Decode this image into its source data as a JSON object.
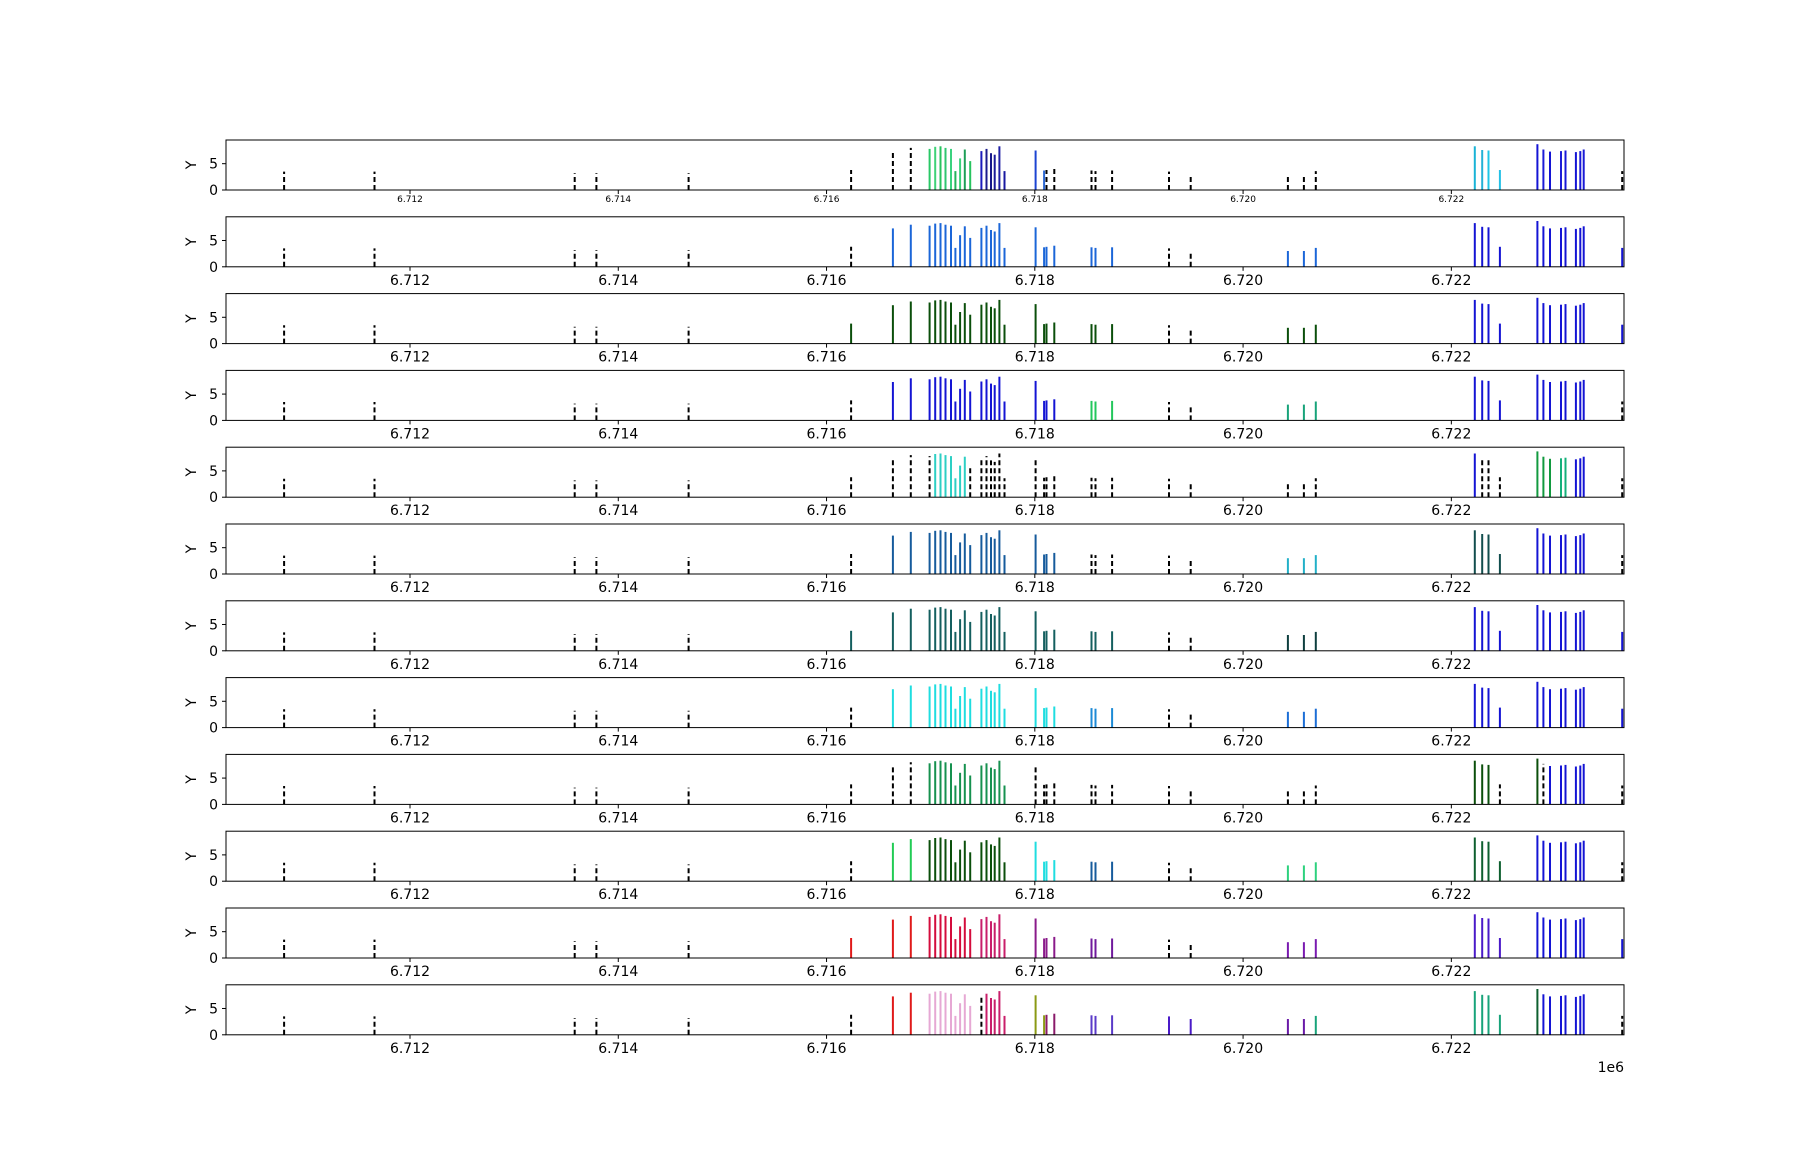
{
  "chart_data": {
    "type": "bar",
    "layout": "12 stacked panels sharing the x axis",
    "x_offset_label": "1e6",
    "xlim": [
      6710233,
      6723658
    ],
    "ylim": [
      0,
      9.5
    ],
    "x_ticks": [
      {
        "value": 6712000,
        "label": "6.712"
      },
      {
        "value": 6714000,
        "label": "6.714"
      },
      {
        "value": 6716000,
        "label": "6.716"
      },
      {
        "value": 6718000,
        "label": "6.718"
      },
      {
        "value": 6720000,
        "label": "6.720"
      },
      {
        "value": 6722000,
        "label": "6.722"
      }
    ],
    "y_ticks": [
      {
        "value": 0,
        "label": "0"
      },
      {
        "value": 5,
        "label": "5"
      }
    ],
    "ylabel": "Y",
    "grid": false,
    "positions": [
      6710791,
      6711659,
      6713582,
      6713790,
      6714675,
      6716236,
      6716637,
      6716809,
      6716990,
      6717043,
      6717094,
      6717142,
      6717195,
      6717237,
      6717283,
      6717328,
      6717380,
      6717487,
      6717536,
      6717579,
      6717615,
      6717660,
      6717709,
      6718008,
      6718089,
      6718112,
      6718187,
      6718544,
      6718583,
      6718742,
      6719289,
      6719497,
      6720430,
      6720584,
      6720698,
      6722225,
      6722296,
      6722357,
      6722466,
      6722826,
      6722884,
      6722947,
      6723053,
      6723096,
      6723196,
      6723238,
      6723271,
      6723641
    ],
    "heights": [
      3.5,
      3.5,
      3.2,
      3.2,
      3.2,
      3.8,
      7.3,
      8.0,
      7.8,
      8.2,
      8.3,
      8.0,
      7.8,
      3.6,
      6.0,
      7.7,
      5.5,
      7.4,
      7.8,
      7.0,
      6.7,
      8.3,
      3.6,
      7.5,
      3.7,
      3.8,
      4.0,
      3.7,
      3.6,
      3.7,
      3.5,
      3.0,
      3.0,
      3.0,
      3.6,
      8.3,
      7.6,
      7.5,
      3.8,
      8.7,
      7.7,
      7.3,
      7.4,
      7.5,
      7.2,
      7.4,
      7.7,
      3.6
    ],
    "panels": [
      {
        "tick_fontsize": "small",
        "colors": [
          "k",
          "k",
          "k",
          "k",
          "k",
          "k",
          "k",
          "k",
          "#29c866",
          "#3ed277",
          "#27c35e",
          "#2ec66f",
          "#3ad27e",
          "#22b45a",
          "#3ad27a",
          "#1e9e57",
          "#27c35e",
          "#1b1bbc",
          "#1b1b8c",
          "#18188a",
          "#1c1c99",
          "#1e1ea4",
          "#1818a0",
          "#1c44d2",
          "#2a66d2",
          "k",
          "k",
          "k",
          "k",
          "k",
          "k",
          "k",
          "k",
          "k",
          "k",
          "#19b3d6",
          "#23b1d6",
          "#1fc5e6",
          "#24c0e6",
          "#1414d4",
          "#1c1cd6",
          "#1414d4",
          "#1c1cd6",
          "#1818d8",
          "#1414d4",
          "#1818d8",
          "#1a1ad6",
          "k"
        ]
      },
      {
        "colors": [
          "k",
          "k",
          "k",
          "k",
          "k",
          "k",
          "#1b66d8",
          "#1b66d8",
          "#1b66d8",
          "#1b66d8",
          "#1b66d8",
          "#1b66d8",
          "#1b66d8",
          "#1b66d8",
          "#1b66d8",
          "#1b66d8",
          "#1b66d8",
          "#1b66d8",
          "#1b66d8",
          "#1b66d8",
          "#1b66d8",
          "#1b66d8",
          "#1b66d8",
          "#1b66d8",
          "#1b66d8",
          "#1b66d8",
          "#1b66d8",
          "#1b66d8",
          "#1b66d8",
          "#1b66d8",
          "k",
          "k",
          "#1b66d8",
          "#1b66d8",
          "#1b66d8",
          "#1414d4",
          "#1414d4",
          "#1414d4",
          "#1414d4",
          "#1414d4",
          "#1414d4",
          "#1414d4",
          "#1414d4",
          "#1414d4",
          "#1414d4",
          "#1414d4",
          "#1414d4",
          "#1414d4"
        ]
      },
      {
        "colors": [
          "k",
          "k",
          "k",
          "k",
          "k",
          "#0b4f0b",
          "#0b4f0b",
          "#0b4f0b",
          "#0b4f0b",
          "#0b4f0b",
          "#0b4f0b",
          "#0b4f0b",
          "#0b4f0b",
          "#0b4f0b",
          "#0b4f0b",
          "#0b4f0b",
          "#0b4f0b",
          "#0b4f0b",
          "#0b4f0b",
          "#0b4f0b",
          "#0b4f0b",
          "#0b4f0b",
          "#0b4f0b",
          "#0b4f0b",
          "#0b4f0b",
          "#0b4f0b",
          "#0b4f0b",
          "#0b4f0b",
          "#0b4f0b",
          "#0b4f0b",
          "k",
          "k",
          "#0b4f0b",
          "#0b4f0b",
          "#0b4f0b",
          "#1414d4",
          "#1414d4",
          "#1414d4",
          "#1414d4",
          "#1414d4",
          "#1414d4",
          "#1414d4",
          "#1414d4",
          "#1414d4",
          "#1414d4",
          "#1414d4",
          "#1414d4",
          "#1414d4"
        ]
      },
      {
        "colors": [
          "k",
          "k",
          "k",
          "k",
          "k",
          "k",
          "#1414d4",
          "#1414d4",
          "#1414d4",
          "#1414d4",
          "#1414d4",
          "#1414d4",
          "#1414d4",
          "#1414d4",
          "#1414d4",
          "#1414d4",
          "#1414d4",
          "#1414d4",
          "#1414d4",
          "#1414d4",
          "#1414d4",
          "#1414d4",
          "#1414d4",
          "#1414d4",
          "#1414d4",
          "#1414d4",
          "#1414d4",
          "#23c75c",
          "#23c75c",
          "#23c75c",
          "k",
          "k",
          "#18a37a",
          "#18a37a",
          "#18a37a",
          "#1414d4",
          "#1414d4",
          "#1414d4",
          "#1414d4",
          "#1414d4",
          "#1414d4",
          "#1414d4",
          "#1414d4",
          "#1414d4",
          "#1414d4",
          "#1414d4",
          "#1414d4",
          "k"
        ]
      },
      {
        "colors": [
          "k",
          "k",
          "k",
          "k",
          "k",
          "k",
          "k",
          "k",
          "k",
          "#2dcfc4",
          "#2dcfc4",
          "#2dcfc4",
          "#2dcfc4",
          "#2dcfc4",
          "#2dcfc4",
          "#2dcfc4",
          "k",
          "k",
          "k",
          "k",
          "k",
          "k",
          "k",
          "k",
          "k",
          "k",
          "k",
          "k",
          "k",
          "k",
          "k",
          "k",
          "k",
          "k",
          "k",
          "#1414d4",
          "k",
          "k",
          "k",
          "#129a3f",
          "#129a3f",
          "#129a3f",
          "#14b07a",
          "#14b07a",
          "#1414d4",
          "#1414d4",
          "#1414d4",
          "k"
        ]
      },
      {
        "colors": [
          "k",
          "k",
          "k",
          "k",
          "k",
          "k",
          "#165b9c",
          "#165b9c",
          "#165b9c",
          "#165b9c",
          "#165b9c",
          "#165b9c",
          "#165b9c",
          "#165b9c",
          "#165b9c",
          "#165b9c",
          "#165b9c",
          "#165b9c",
          "#165b9c",
          "#165b9c",
          "#165b9c",
          "#165b9c",
          "#165b9c",
          "#165b9c",
          "#165b9c",
          "#165b9c",
          "#165b9c",
          "k",
          "k",
          "k",
          "k",
          "k",
          "#22b0c8",
          "#22b0c8",
          "#22b0c8",
          "#124e4e",
          "#124e4e",
          "#124e4e",
          "#124e4e",
          "#1414d4",
          "#1414d4",
          "#1414d4",
          "#1414d4",
          "#1414d4",
          "#1414d4",
          "#1414d4",
          "#1414d4",
          "k"
        ]
      },
      {
        "colors": [
          "k",
          "k",
          "k",
          "k",
          "k",
          "#145f5f",
          "#145f5f",
          "#145f5f",
          "#145f5f",
          "#145f5f",
          "#145f5f",
          "#145f5f",
          "#145f5f",
          "#145f5f",
          "#145f5f",
          "#145f5f",
          "#145f5f",
          "#145f5f",
          "#145f5f",
          "#145f5f",
          "#145f5f",
          "#145f5f",
          "#145f5f",
          "#145f5f",
          "#145f5f",
          "#145f5f",
          "#145f5f",
          "#145f5f",
          "#145f5f",
          "#145f5f",
          "k",
          "k",
          "#0e3f3f",
          "#0e3f3f",
          "#0e3f3f",
          "#1414d4",
          "#1414d4",
          "#1414d4",
          "#1414d4",
          "#1414d4",
          "#1414d4",
          "#1414d4",
          "#1414d4",
          "#1414d4",
          "#1414d4",
          "#1414d4",
          "#1414d4",
          "#1414d4"
        ]
      },
      {
        "colors": [
          "k",
          "k",
          "k",
          "k",
          "k",
          "k",
          "#1fdde0",
          "#1fdde0",
          "#1fdde0",
          "#1fdde0",
          "#1fdde0",
          "#1fdde0",
          "#1fdde0",
          "#1fdde0",
          "#1fdde0",
          "#1fdde0",
          "#1fdde0",
          "#1fdde0",
          "#1fdde0",
          "#1fdde0",
          "#1fdde0",
          "#1fdde0",
          "#1fdde0",
          "#1fdde0",
          "#1fdde0",
          "#1fdde0",
          "#1fdde0",
          "#1c8ad6",
          "#1c8ad6",
          "#1c8ad6",
          "k",
          "k",
          "#1c6ed6",
          "#1c6ed6",
          "#1c6ed6",
          "#1414d4",
          "#1414d4",
          "#1414d4",
          "#1414d4",
          "#1414d4",
          "#1414d4",
          "#1414d4",
          "#1414d4",
          "#1414d4",
          "#1414d4",
          "#1414d4",
          "#1414d4",
          "#1414d4"
        ]
      },
      {
        "colors": [
          "k",
          "k",
          "k",
          "k",
          "k",
          "k",
          "k",
          "k",
          "#16914f",
          "#16914f",
          "#16914f",
          "#16914f",
          "#16914f",
          "#16914f",
          "#16914f",
          "#16914f",
          "#16914f",
          "#16914f",
          "#16914f",
          "#16914f",
          "#16914f",
          "#16914f",
          "#16914f",
          "k",
          "k",
          "k",
          "k",
          "k",
          "k",
          "k",
          "k",
          "k",
          "k",
          "k",
          "k",
          "#0b4f0b",
          "#0b4f0b",
          "#0b4f0b",
          "k",
          "#0b4f0b",
          "k",
          "#1414d4",
          "#1414d4",
          "#1414d4",
          "#1414d4",
          "#1414d4",
          "#1414d4",
          "k"
        ]
      },
      {
        "colors": [
          "k",
          "k",
          "k",
          "k",
          "k",
          "k",
          "#22cc55",
          "#22cc55",
          "#0b4f0b",
          "#0b4f0b",
          "#0b4f0b",
          "#0b4f0b",
          "#0b4f0b",
          "#0b4f0b",
          "#0b4f0b",
          "#0b4f0b",
          "#0b4f0b",
          "#0b4f0b",
          "#0b4f0b",
          "#0b4f0b",
          "#0b4f0b",
          "#0b4f0b",
          "#0b4f0b",
          "#1fdde0",
          "#1fdde0",
          "#1fdde0",
          "#1fdde0",
          "#165b9c",
          "#165b9c",
          "#165b9c",
          "k",
          "k",
          "#2ed17e",
          "#2ed17e",
          "#2ed17e",
          "#0e5f2f",
          "#0e5f2f",
          "#0e5f2f",
          "#0e5f2f",
          "#1414d4",
          "#1414d4",
          "#1414d4",
          "#1414d4",
          "#1414d4",
          "#1414d4",
          "#1414d4",
          "#1414d4",
          "k"
        ]
      },
      {
        "colors": [
          "k",
          "k",
          "k",
          "k",
          "k",
          "#e01a1a",
          "#e01a1a",
          "#e01a1a",
          "#d40c3c",
          "#d40c3c",
          "#d40c3c",
          "#d40c3c",
          "#d40c3c",
          "#d40c3c",
          "#d40c3c",
          "#d40c3c",
          "#d40c3c",
          "#c81e6a",
          "#c81e6a",
          "#c81e6a",
          "#c81e6a",
          "#c81e6a",
          "#c81e6a",
          "#8a1a8a",
          "#8a1a8a",
          "#8a1a8a",
          "#8a1a8a",
          "#701a9c",
          "#701a9c",
          "#701a9c",
          "k",
          "k",
          "#7a1ab0",
          "#7a1ab0",
          "#7a1ab0",
          "#4a1ac8",
          "#4a1ac8",
          "#4a1ac8",
          "#4a1ac8",
          "#1414d4",
          "#1414d4",
          "#1414d4",
          "#1414d4",
          "#1414d4",
          "#1414d4",
          "#1414d4",
          "#1414d4",
          "#1414d4"
        ]
      },
      {
        "colors": [
          "k",
          "k",
          "k",
          "k",
          "k",
          "k",
          "#e01a1a",
          "#e01a1a",
          "#e6a8d4",
          "#e6a8d4",
          "#e6a8d4",
          "#e6a8d4",
          "#e6a8d4",
          "#e6a8d4",
          "#e6a8d4",
          "#e6a8d4",
          "#e6a8d4",
          "k",
          "#c81e6a",
          "#c81e6a",
          "#c81e6a",
          "#c81e6a",
          "#c81e6a",
          "#8a9a14",
          "#8a9a14",
          "#8a1a6a",
          "#8a1a6a",
          "#5a3ac8",
          "#5a3ac8",
          "#5a3ac8",
          "#4a1ac8",
          "#4a1ac8",
          "#6a1aa8",
          "#6a1aa8",
          "#18a37a",
          "#18a37a",
          "#18a37a",
          "#18a37a",
          "#18a37a",
          "#0e5f2f",
          "#1414d4",
          "#1414d4",
          "#1414d4",
          "#1414d4",
          "#1414d4",
          "#1414d4",
          "#1414d4",
          "k"
        ]
      }
    ]
  }
}
